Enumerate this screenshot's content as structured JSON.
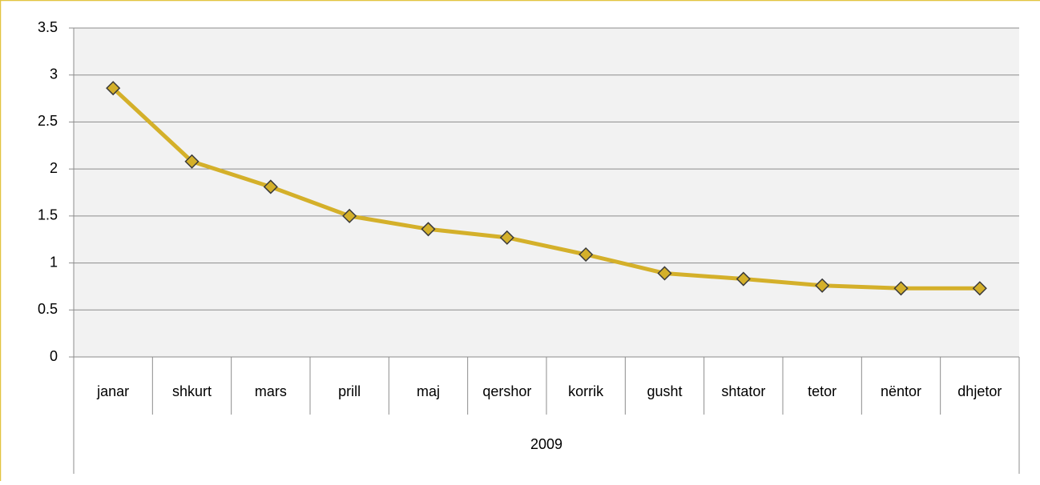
{
  "chart_data": {
    "type": "line",
    "categories": [
      "janar",
      "shkurt",
      "mars",
      "prill",
      "maj",
      "qershor",
      "korrik",
      "gusht",
      "shtator",
      "tetor",
      "nëntor",
      "dhjetor"
    ],
    "x_group": "2009",
    "series": [
      {
        "color": "#d4b02a",
        "values": [
          2.86,
          2.08,
          1.81,
          1.5,
          1.36,
          1.27,
          1.09,
          0.89,
          0.83,
          0.76,
          0.73,
          0.73
        ]
      }
    ],
    "ylim": [
      0,
      3.5
    ],
    "yticks": [
      0,
      0.5,
      1,
      1.5,
      2,
      2.5,
      3,
      3.5
    ],
    "grid": true
  }
}
